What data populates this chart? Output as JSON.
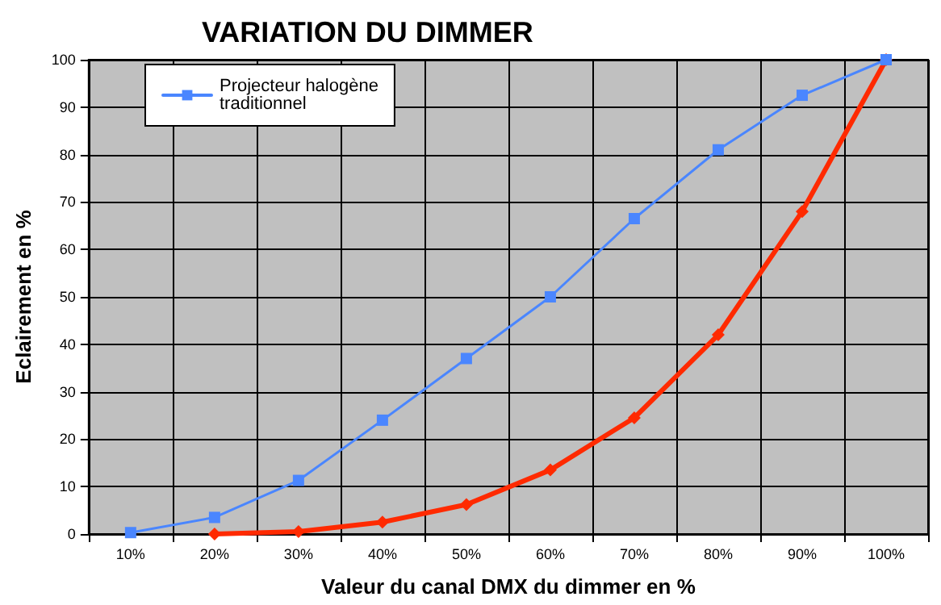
{
  "chart_data": {
    "type": "line",
    "title": "VARIATION DU DIMMER",
    "xlabel": "Valeur du canal DMX du dimmer en %",
    "ylabel": "Eclairement en %",
    "categories": [
      "10%",
      "20%",
      "30%",
      "40%",
      "50%",
      "60%",
      "70%",
      "80%",
      "90%",
      "100%"
    ],
    "series": [
      {
        "color": "#ff2a00",
        "marker": "diamond",
        "values": [
          null,
          0,
          0.5,
          2.5,
          6.2,
          13.5,
          24.5,
          42,
          68,
          100
        ]
      },
      {
        "name": "Projecteur halogène\ntraditionnel",
        "color": "#4a86ff",
        "marker": "square",
        "values": [
          0.3,
          3.5,
          11.3,
          24,
          37,
          50,
          66.5,
          81,
          92.5,
          100
        ]
      }
    ],
    "ylim": [
      0,
      100
    ],
    "yticks": [
      0,
      10,
      20,
      30,
      40,
      50,
      60,
      70,
      80,
      90,
      100
    ],
    "grid": true,
    "legend": "top left"
  }
}
